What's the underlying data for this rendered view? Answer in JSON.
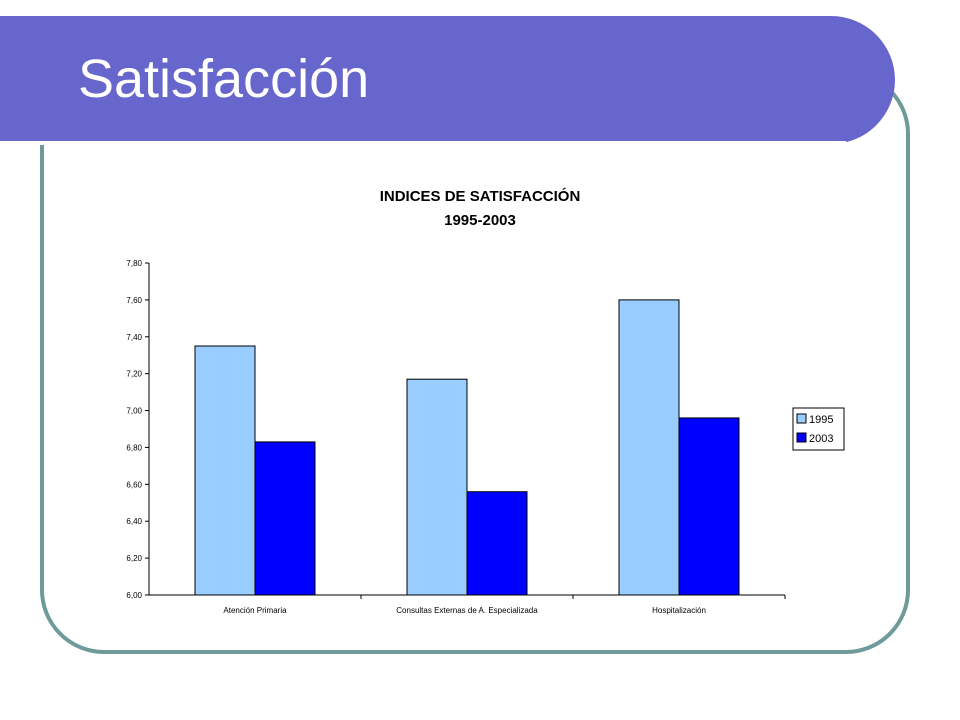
{
  "slide": {
    "title": "Satisfacción"
  },
  "chart_data": {
    "type": "bar",
    "title": "INDICES DE SATISFACCIÓN",
    "subtitle": "1995-2003",
    "categories": [
      "Atención Primaria",
      "Consultas Externas de A. Especializada",
      "Hospitalización"
    ],
    "series": [
      {
        "name": "1995",
        "color": "#99ccff",
        "values": [
          7.35,
          7.17,
          7.6
        ]
      },
      {
        "name": "2003",
        "color": "#0000ff",
        "values": [
          6.83,
          6.56,
          6.96
        ]
      }
    ],
    "ylim": [
      6.0,
      7.8
    ],
    "yticks": [
      "6,00",
      "6,20",
      "6,40",
      "6,60",
      "6,80",
      "7,00",
      "7,20",
      "7,40",
      "7,60",
      "7,80"
    ],
    "xlabel": "",
    "ylabel": "",
    "grid": false,
    "legend": "right"
  }
}
